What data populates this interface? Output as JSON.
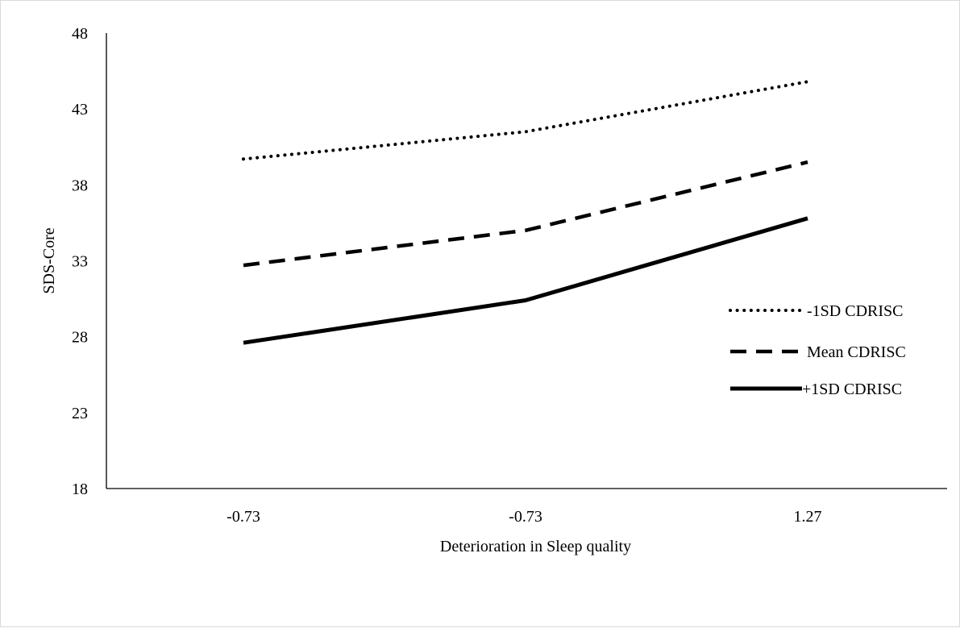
{
  "chart_data": {
    "type": "line",
    "title": "",
    "xlabel": "Deterioration in Sleep quality",
    "ylabel": "SDS-Core",
    "categories": [
      "-0.73",
      "-0.73",
      "1.27"
    ],
    "ylim": [
      18,
      48
    ],
    "yticks": [
      18,
      23,
      28,
      33,
      38,
      43,
      48
    ],
    "grid": false,
    "legend_position": "right",
    "series": [
      {
        "name": "-1SD CDRISC",
        "style": "dotted",
        "color": "#000000",
        "values": [
          39.7,
          41.5,
          44.8
        ]
      },
      {
        "name": "Mean CDRISC",
        "style": "dashed",
        "color": "#000000",
        "values": [
          32.7,
          35.0,
          39.5
        ]
      },
      {
        "name": "+1SD CDRISC",
        "style": "solid",
        "color": "#000000",
        "values": [
          27.6,
          30.4,
          35.8
        ]
      }
    ]
  }
}
